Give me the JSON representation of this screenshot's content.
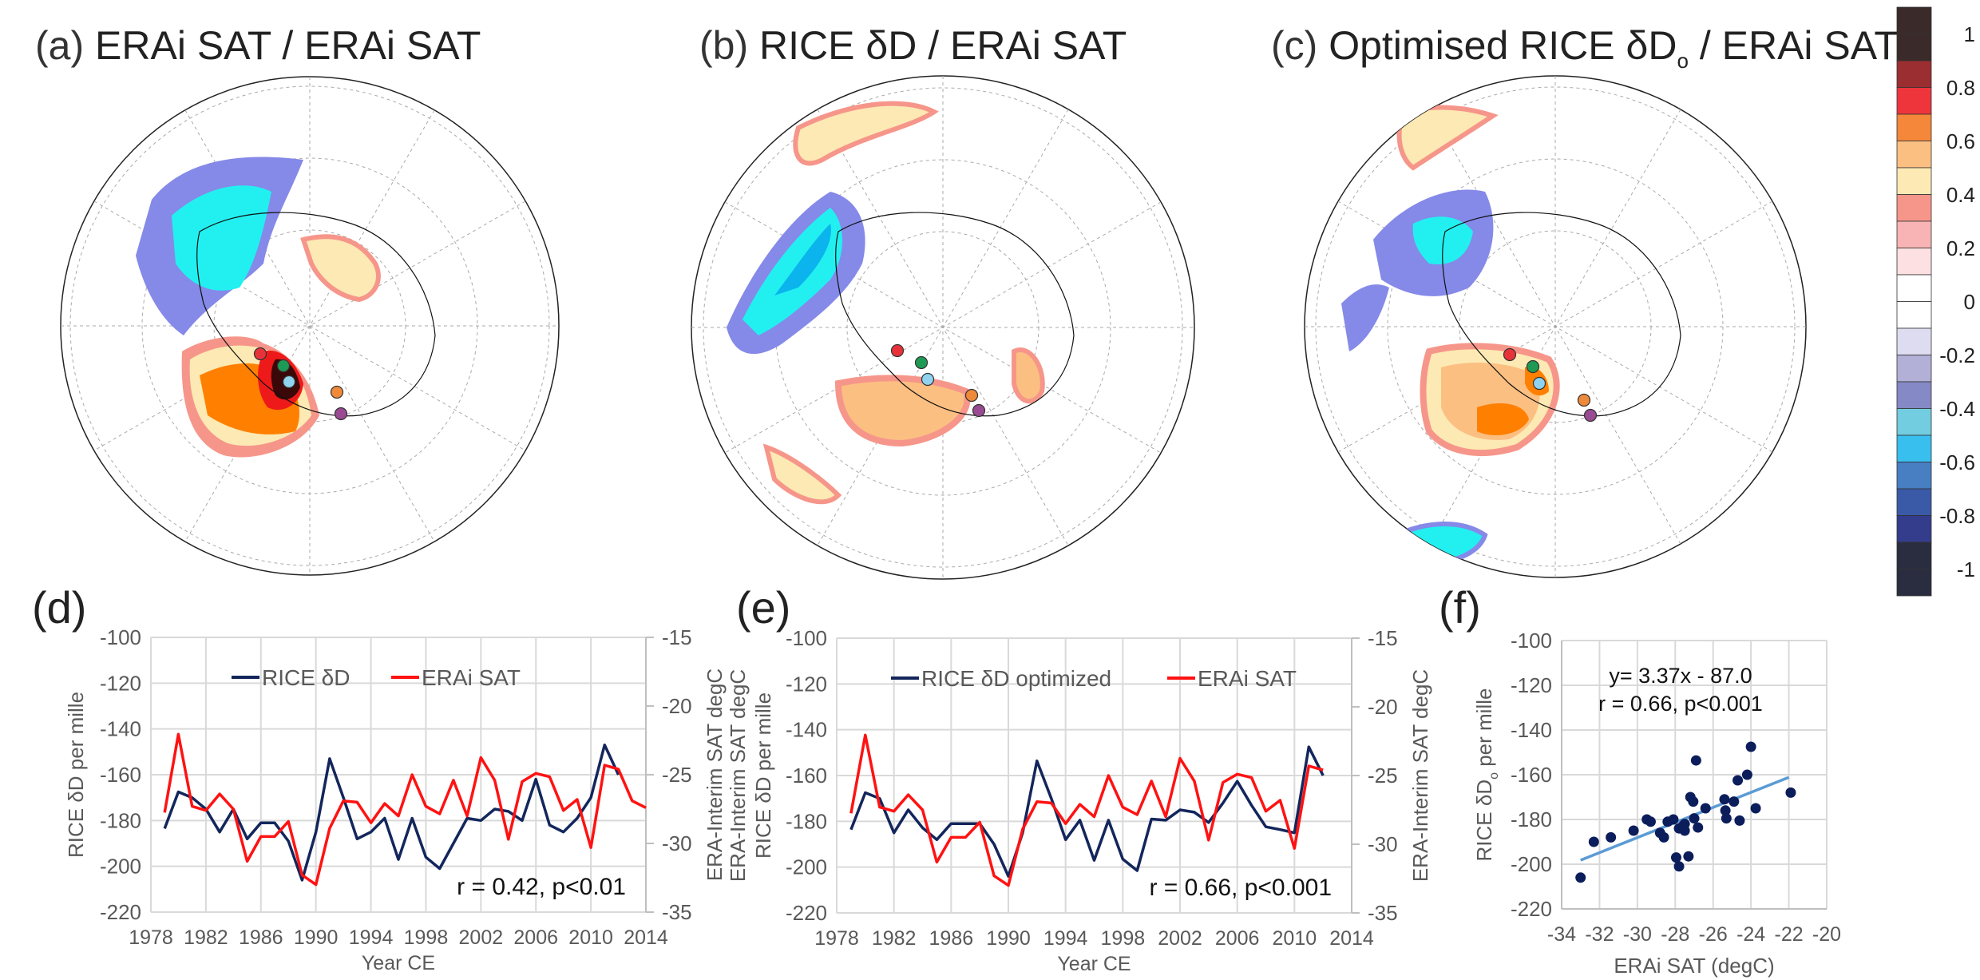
{
  "figure": {
    "maps": [
      {
        "label": "(a)",
        "title": "ERAi SAT / ERAi SAT"
      },
      {
        "label": "(b)",
        "title": "RICE δD / ERAi SAT"
      },
      {
        "label": "(c)",
        "title_pre": "Optimised RICE δD",
        "title_sub": "o",
        "title_post": " / ERAi SAT"
      }
    ],
    "site_markers": [
      {
        "name": "site-red",
        "color": "#e8323a"
      },
      {
        "name": "site-green",
        "color": "#1f9a55"
      },
      {
        "name": "site-lightblue",
        "color": "#8fd3f0"
      },
      {
        "name": "site-orange",
        "color": "#ee8a3a"
      },
      {
        "name": "site-purple",
        "color": "#9a4a93"
      }
    ],
    "colorbar": {
      "bins": [
        "#3a2a2a",
        "#3a2a2a",
        "#9b2e30",
        "#ee353b",
        "#f4873a",
        "#fcbf82",
        "#fde9b3",
        "#f6968a",
        "#f8b4b4",
        "#fde0e1",
        "#ffffff",
        "#ffffff",
        "#dedcf0",
        "#b2b0d6",
        "#8589c6",
        "#72cde0",
        "#39bfee",
        "#477fc2",
        "#3a5aa8",
        "#343c8c",
        "#2a2d40",
        "#2a2d40"
      ],
      "labels": [
        "1",
        "0.8",
        "0.6",
        "0.4",
        "0.2",
        "0",
        "-0.2",
        "-0.4",
        "-0.6",
        "-0.8",
        "-1"
      ]
    }
  },
  "chart_data": [
    {
      "id": "d",
      "panel_label": "(d)",
      "type": "line",
      "xlabel": "Year CE",
      "ylabel_left": "RICE δD per mille",
      "ylabel_right": "ERA-Interim SAT degC",
      "x_ticks": [
        "1978",
        "1982",
        "1986",
        "1990",
        "1994",
        "1998",
        "2002",
        "2006",
        "2010",
        "2014"
      ],
      "xlim": [
        1978,
        2014
      ],
      "ylim_left": [
        -220,
        -100
      ],
      "y_ticks_left": [
        "-100",
        "-120",
        "-140",
        "-160",
        "-180",
        "-200",
        "-220"
      ],
      "ylim_right": [
        -35,
        -15
      ],
      "y_ticks_right": [
        "-15",
        "-20",
        "-25",
        "-30",
        "-35"
      ],
      "grid": true,
      "legend_position": "top-center",
      "annotation": "r = 0.42, p<0.01",
      "series": [
        {
          "name": "RICE δD",
          "axis": "left",
          "color": "#13265c",
          "x_start": 1979,
          "values": [
            -183.5,
            -167.5,
            -170,
            -175,
            -185,
            -175,
            -188,
            -181,
            -181,
            -189,
            -206,
            -185,
            -153,
            -170,
            -188,
            -185,
            -179,
            -197,
            -179,
            -196,
            -201,
            -190,
            -179,
            -180,
            -175,
            -176,
            -180,
            -162,
            -182,
            -185,
            -179,
            -170,
            -147,
            -160
          ]
        },
        {
          "name": "ERAi SAT",
          "axis": "right",
          "color": "#ff1212",
          "x_start": 1979,
          "values": [
            -27.75,
            -22.05,
            -27.3,
            -27.6,
            -26.4,
            -27.5,
            -31.3,
            -29.5,
            -29.5,
            -28.4,
            -32.3,
            -33.0,
            -28.9,
            -26.9,
            -27.0,
            -28.5,
            -27.1,
            -28.0,
            -25.0,
            -27.3,
            -27.85,
            -25.4,
            -28.0,
            -23.75,
            -25.4,
            -29.7,
            -25.5,
            -24.9,
            -25.15,
            -27.6,
            -26.8,
            -30.3,
            -24.3,
            -24.6,
            -26.9,
            -27.4
          ]
        }
      ]
    },
    {
      "id": "e",
      "panel_label": "(e)",
      "type": "line",
      "xlabel": "Year CE",
      "ylabel_left": "RICE δD per mille",
      "ylabel_left2": "ERA-Interim SAT degC",
      "ylabel_right": "ERA-Interim SAT degC",
      "x_ticks": [
        "1978",
        "1982",
        "1986",
        "1990",
        "1994",
        "1998",
        "2002",
        "2006",
        "2010",
        "2014"
      ],
      "xlim": [
        1978,
        2014
      ],
      "ylim_left": [
        -220,
        -100
      ],
      "y_ticks_left": [
        "-100",
        "-120",
        "-140",
        "-160",
        "-180",
        "-200",
        "-220"
      ],
      "ylim_right": [
        -35,
        -15
      ],
      "y_ticks_right": [
        "-15",
        "-20",
        "-25",
        "-30",
        "-35"
      ],
      "grid": true,
      "legend_position": "top-center",
      "annotation": "r = 0.66, p<0.001",
      "series": [
        {
          "name": "RICE δD optimized",
          "axis": "left",
          "color": "#13265c",
          "x_start": 1979,
          "values": [
            -183.6,
            -167.5,
            -170,
            -185,
            -175,
            -182.8,
            -188,
            -181,
            -181,
            -181,
            -190,
            -204,
            -185,
            -153.6,
            -170,
            -188,
            -179.5,
            -197,
            -179.5,
            -196.5,
            -201.5,
            -179,
            -179.5,
            -175,
            -176,
            -180.5,
            -172,
            -162.5,
            -173,
            -182.4,
            -183.6,
            -185,
            -147.5,
            -160
          ]
        },
        {
          "name": "ERAi SAT",
          "axis": "right",
          "color": "#ff1212",
          "x_start": 1979,
          "values": [
            -27.75,
            -22.05,
            -27.3,
            -27.6,
            -26.4,
            -27.5,
            -31.3,
            -29.5,
            -29.5,
            -28.4,
            -32.3,
            -33.0,
            -28.9,
            -26.9,
            -27.0,
            -28.5,
            -27.1,
            -28.0,
            -25.0,
            -27.3,
            -27.85,
            -25.4,
            -28.0,
            -23.75,
            -25.4,
            -29.7,
            -25.5,
            -24.9,
            -25.15,
            -27.6,
            -26.8,
            -30.3,
            -24.3,
            -24.6
          ]
        }
      ]
    },
    {
      "id": "f",
      "panel_label": "(f)",
      "type": "scatter",
      "xlabel": "ERAi SAT (degC)",
      "ylabel_pre": "RICE δD",
      "ylabel_sub": "o",
      "ylabel_post": " per mille",
      "xlim": [
        -34,
        -20
      ],
      "x_ticks": [
        "-34",
        "-32",
        "-30",
        "-28",
        "-26",
        "-24",
        "-22",
        "-20"
      ],
      "ylim": [
        -220,
        -100
      ],
      "y_ticks": [
        "-100",
        "-120",
        "-140",
        "-160",
        "-180",
        "-200",
        "-220"
      ],
      "grid": true,
      "annotation_line1": "y= 3.37x - 87.0",
      "annotation_line2": "r =  0.66, p<0.001",
      "point_color": "#0b1e5b",
      "trend": {
        "slope": 3.37,
        "intercept": -87.0,
        "x_range": [
          -33.0,
          -22.0
        ],
        "color": "#5b9bd5"
      },
      "points": [
        [
          -33.0,
          -206
        ],
        [
          -32.3,
          -190
        ],
        [
          -31.4,
          -188
        ],
        [
          -30.2,
          -185
        ],
        [
          -29.5,
          -180
        ],
        [
          -29.3,
          -181
        ],
        [
          -28.8,
          -186
        ],
        [
          -28.6,
          -188
        ],
        [
          -28.4,
          -181
        ],
        [
          -28.1,
          -180
        ],
        [
          -27.95,
          -197
        ],
        [
          -27.8,
          -201
        ],
        [
          -27.8,
          -184
        ],
        [
          -27.6,
          -183
        ],
        [
          -27.5,
          -182
        ],
        [
          -27.5,
          -185
        ],
        [
          -27.3,
          -196.5
        ],
        [
          -27.2,
          -170
        ],
        [
          -27.05,
          -172
        ],
        [
          -27.0,
          -179.5
        ],
        [
          -26.9,
          -153.6
        ],
        [
          -26.8,
          -183.6
        ],
        [
          -26.4,
          -175
        ],
        [
          -25.4,
          -171
        ],
        [
          -25.35,
          -176
        ],
        [
          -25.3,
          -179.5
        ],
        [
          -24.9,
          -172
        ],
        [
          -24.7,
          -162.5
        ],
        [
          -24.6,
          -180.5
        ],
        [
          -24.2,
          -160
        ],
        [
          -24.0,
          -147.5
        ],
        [
          -23.75,
          -175
        ],
        [
          -21.9,
          -168
        ]
      ]
    }
  ]
}
